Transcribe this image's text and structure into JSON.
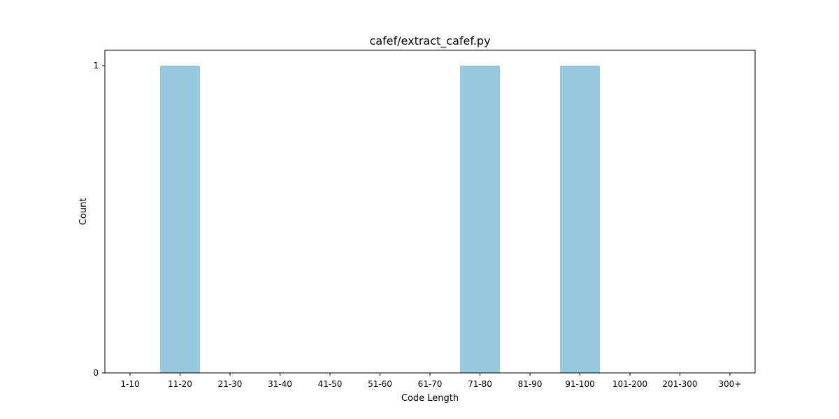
{
  "chart_data": {
    "type": "bar",
    "title": "cafef/extract_cafef.py",
    "xlabel": "Code Length",
    "ylabel": "Count",
    "categories": [
      "1-10",
      "11-20",
      "21-30",
      "31-40",
      "41-50",
      "51-60",
      "61-70",
      "71-80",
      "81-90",
      "91-100",
      "101-200",
      "201-300",
      "300+"
    ],
    "values": [
      0,
      1,
      0,
      0,
      0,
      0,
      0,
      1,
      0,
      1,
      0,
      0,
      0
    ],
    "ylim": [
      0,
      1
    ],
    "yticks": [
      0,
      1
    ],
    "bar_color": "#96c9dd",
    "grid": false,
    "legend": "none"
  }
}
